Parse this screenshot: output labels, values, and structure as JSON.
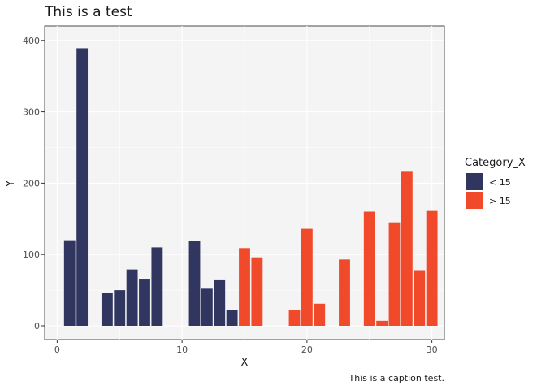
{
  "chart_data": {
    "type": "bar",
    "title": "This is a test",
    "xlabel": "X",
    "ylabel": "Y",
    "caption": "This is a caption test.",
    "xlim": [
      -1,
      31
    ],
    "ylim": [
      0,
      410
    ],
    "xticks": [
      "0",
      "10",
      "20",
      "30"
    ],
    "yticks": [
      "0",
      "100",
      "200",
      "300",
      "400"
    ],
    "grid": true,
    "legend": {
      "title": "Category_X",
      "placement": "right",
      "entries": [
        {
          "label": "< 15",
          "color": "#303660"
        },
        {
          "label": "> 15",
          "color": "#F04A2A"
        }
      ]
    },
    "series": [
      {
        "name": "< 15",
        "color": "#303660",
        "x": [
          1,
          2,
          4,
          5,
          6,
          7,
          8,
          11,
          12,
          13,
          14
        ],
        "values": [
          120,
          389,
          46,
          50,
          79,
          66,
          110,
          119,
          52,
          65,
          22
        ]
      },
      {
        "name": "> 15",
        "color": "#F04A2A",
        "x": [
          15,
          16,
          19,
          20,
          21,
          23,
          25,
          26,
          27,
          28,
          29,
          30
        ],
        "values": [
          109,
          96,
          22,
          136,
          31,
          93,
          160,
          7,
          145,
          216,
          78,
          161
        ]
      }
    ]
  }
}
